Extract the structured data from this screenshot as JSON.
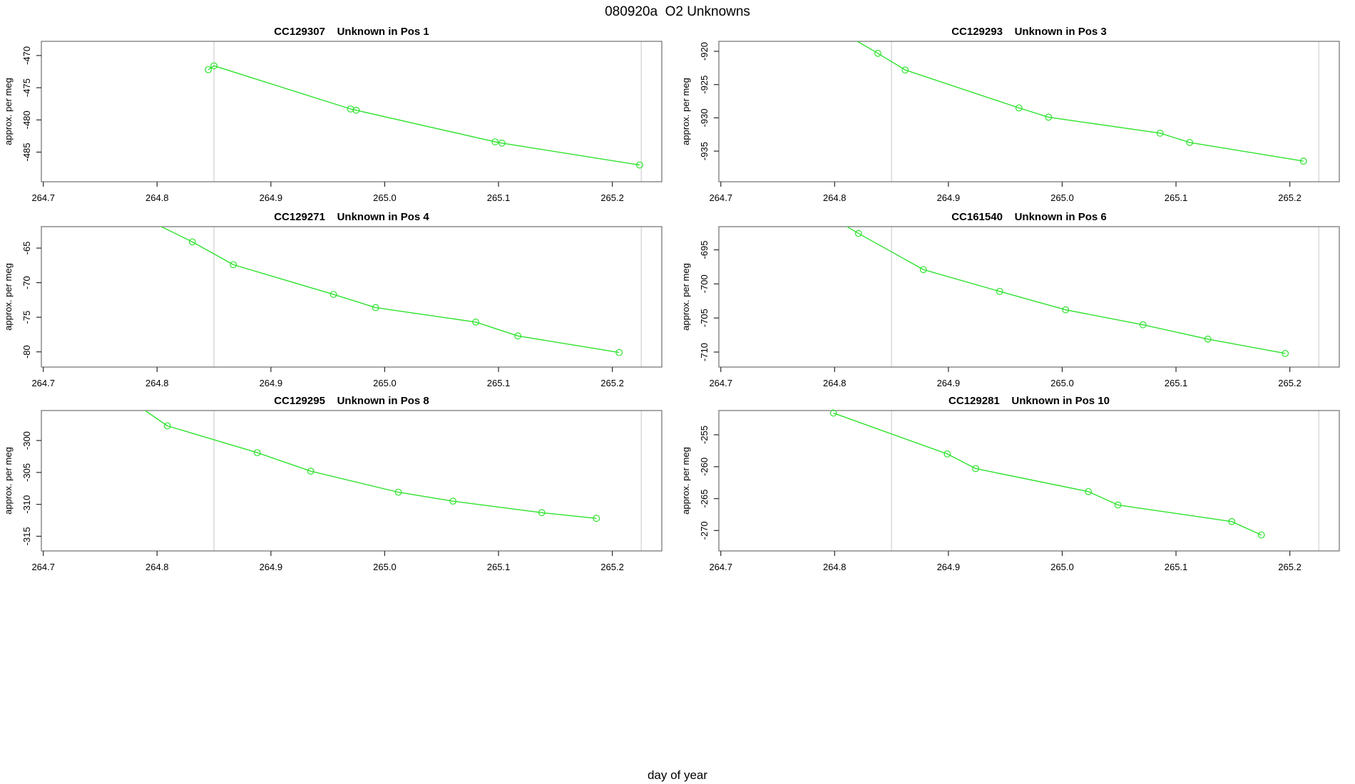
{
  "figure": {
    "main_title": "080920a  O2 Unknowns",
    "xlabel": "day of year",
    "ylabel": "approx. per meg",
    "colors": {
      "line": "#2EE22E",
      "marker": "#2EE22E",
      "gridline": "#DBDBDB",
      "box": "#6E6E6E",
      "tick": "#2A2A2A",
      "text": "#000000",
      "background": "#FFFFFF"
    }
  },
  "chart_data": [
    {
      "type": "line",
      "title": "CC129307    Unknown in Pos 1",
      "sample_id": "CC129307",
      "position_label": "Unknown in Pos 1",
      "ylabel": "approx. per meg",
      "xlim": [
        264.6983,
        265.2435
      ],
      "ylim": [
        -489.6,
        -467.8
      ],
      "x_ticks": [
        264.7,
        264.8,
        264.9,
        265.0,
        265.1,
        265.2
      ],
      "y_ticks": [
        -470,
        -475,
        -480,
        -485
      ],
      "gridlines_x": [
        264.85,
        265.2255
      ],
      "grid": "vertical-reference-lines-only",
      "legend": "none",
      "points": [
        [
          264.845,
          -472.2
        ],
        [
          264.85,
          -471.6
        ],
        [
          264.97,
          -478.3
        ],
        [
          264.975,
          -478.5
        ],
        [
          265.097,
          -483.4
        ],
        [
          265.103,
          -483.6
        ],
        [
          265.224,
          -487.0
        ]
      ]
    },
    {
      "type": "line",
      "title": "CC129293    Unknown in Pos 3",
      "sample_id": "CC129293",
      "position_label": "Unknown in Pos 3",
      "ylabel": "approx. per meg",
      "xlim": [
        264.6983,
        265.2435
      ],
      "ylim": [
        -939.6,
        -918.5
      ],
      "x_ticks": [
        264.7,
        264.8,
        264.9,
        265.0,
        265.1,
        265.2
      ],
      "y_ticks": [
        -920,
        -925,
        -930,
        -935
      ],
      "gridlines_x": [
        264.85,
        265.2255
      ],
      "grid": "vertical-reference-lines-only",
      "legend": "none",
      "points": [
        [
          264.805,
          -917.0
        ],
        [
          264.838,
          -920.3
        ],
        [
          264.862,
          -922.8
        ],
        [
          264.962,
          -928.5
        ],
        [
          264.988,
          -929.9
        ],
        [
          265.086,
          -932.3
        ],
        [
          265.112,
          -933.7
        ],
        [
          265.212,
          -936.5
        ]
      ]
    },
    {
      "type": "line",
      "title": "CC129271    Unknown in Pos 4",
      "sample_id": "CC129271",
      "position_label": "Unknown in Pos 4",
      "ylabel": "approx. per meg",
      "xlim": [
        264.6983,
        265.2435
      ],
      "ylim": [
        -82.2,
        -61.9
      ],
      "x_ticks": [
        264.7,
        264.8,
        264.9,
        265.0,
        265.1,
        265.2
      ],
      "y_ticks": [
        -65,
        -70,
        -75,
        -80
      ],
      "gridlines_x": [
        264.85,
        265.2255
      ],
      "grid": "vertical-reference-lines-only",
      "legend": "none",
      "points": [
        [
          264.79,
          -60.8
        ],
        [
          264.831,
          -64.1
        ],
        [
          264.867,
          -67.4
        ],
        [
          264.955,
          -71.7
        ],
        [
          264.992,
          -73.6
        ],
        [
          265.08,
          -75.7
        ],
        [
          265.117,
          -77.7
        ],
        [
          265.206,
          -80.1
        ]
      ]
    },
    {
      "type": "line",
      "title": "CC161540    Unknown in Pos 6",
      "sample_id": "CC161540",
      "position_label": "Unknown in Pos 6",
      "ylabel": "approx. per meg",
      "xlim": [
        264.6983,
        265.2435
      ],
      "ylim": [
        -712.2,
        -691.6
      ],
      "x_ticks": [
        264.7,
        264.8,
        264.9,
        265.0,
        265.1,
        265.2
      ],
      "y_ticks": [
        -695,
        -700,
        -705,
        -710
      ],
      "gridlines_x": [
        264.85,
        265.2255
      ],
      "grid": "vertical-reference-lines-only",
      "legend": "none",
      "points": [
        [
          264.8,
          -690.5
        ],
        [
          264.821,
          -692.6
        ],
        [
          264.878,
          -697.9
        ],
        [
          264.945,
          -701.1
        ],
        [
          265.003,
          -703.8
        ],
        [
          265.071,
          -706.0
        ],
        [
          265.128,
          -708.1
        ],
        [
          265.196,
          -710.2
        ]
      ]
    },
    {
      "type": "line",
      "title": "CC129295    Unknown in Pos 8",
      "sample_id": "CC129295",
      "position_label": "Unknown in Pos 8",
      "ylabel": "approx. per meg",
      "xlim": [
        264.6983,
        265.2435
      ],
      "ylim": [
        -317.3,
        -295.3
      ],
      "x_ticks": [
        264.7,
        264.8,
        264.9,
        265.0,
        265.1,
        265.2
      ],
      "y_ticks": [
        -300,
        -305,
        -310,
        -315
      ],
      "gridlines_x": [
        264.85,
        265.2255
      ],
      "grid": "vertical-reference-lines-only",
      "legend": "none",
      "points": [
        [
          264.783,
          -294.5
        ],
        [
          264.809,
          -297.7
        ],
        [
          264.888,
          -301.9
        ],
        [
          264.935,
          -304.8
        ],
        [
          265.012,
          -308.1
        ],
        [
          265.06,
          -309.5
        ],
        [
          265.138,
          -311.3
        ],
        [
          265.186,
          -312.2
        ]
      ]
    },
    {
      "type": "line",
      "title": "CC129281    Unknown in Pos 10",
      "sample_id": "CC129281",
      "position_label": "Unknown in Pos 10",
      "ylabel": "approx. per meg",
      "xlim": [
        264.6983,
        265.2435
      ],
      "ylim": [
        -273.2,
        -251.2
      ],
      "x_ticks": [
        264.7,
        264.8,
        264.9,
        265.0,
        265.1,
        265.2
      ],
      "y_ticks": [
        -255,
        -260,
        -265,
        -270
      ],
      "gridlines_x": [
        264.85,
        265.2255
      ],
      "grid": "vertical-reference-lines-only",
      "legend": "none",
      "points": [
        [
          264.799,
          -251.6
        ],
        [
          264.899,
          -258.0
        ],
        [
          264.924,
          -260.3
        ],
        [
          265.023,
          -263.9
        ],
        [
          265.049,
          -266.0
        ],
        [
          265.149,
          -268.6
        ],
        [
          265.175,
          -270.7
        ]
      ]
    }
  ]
}
